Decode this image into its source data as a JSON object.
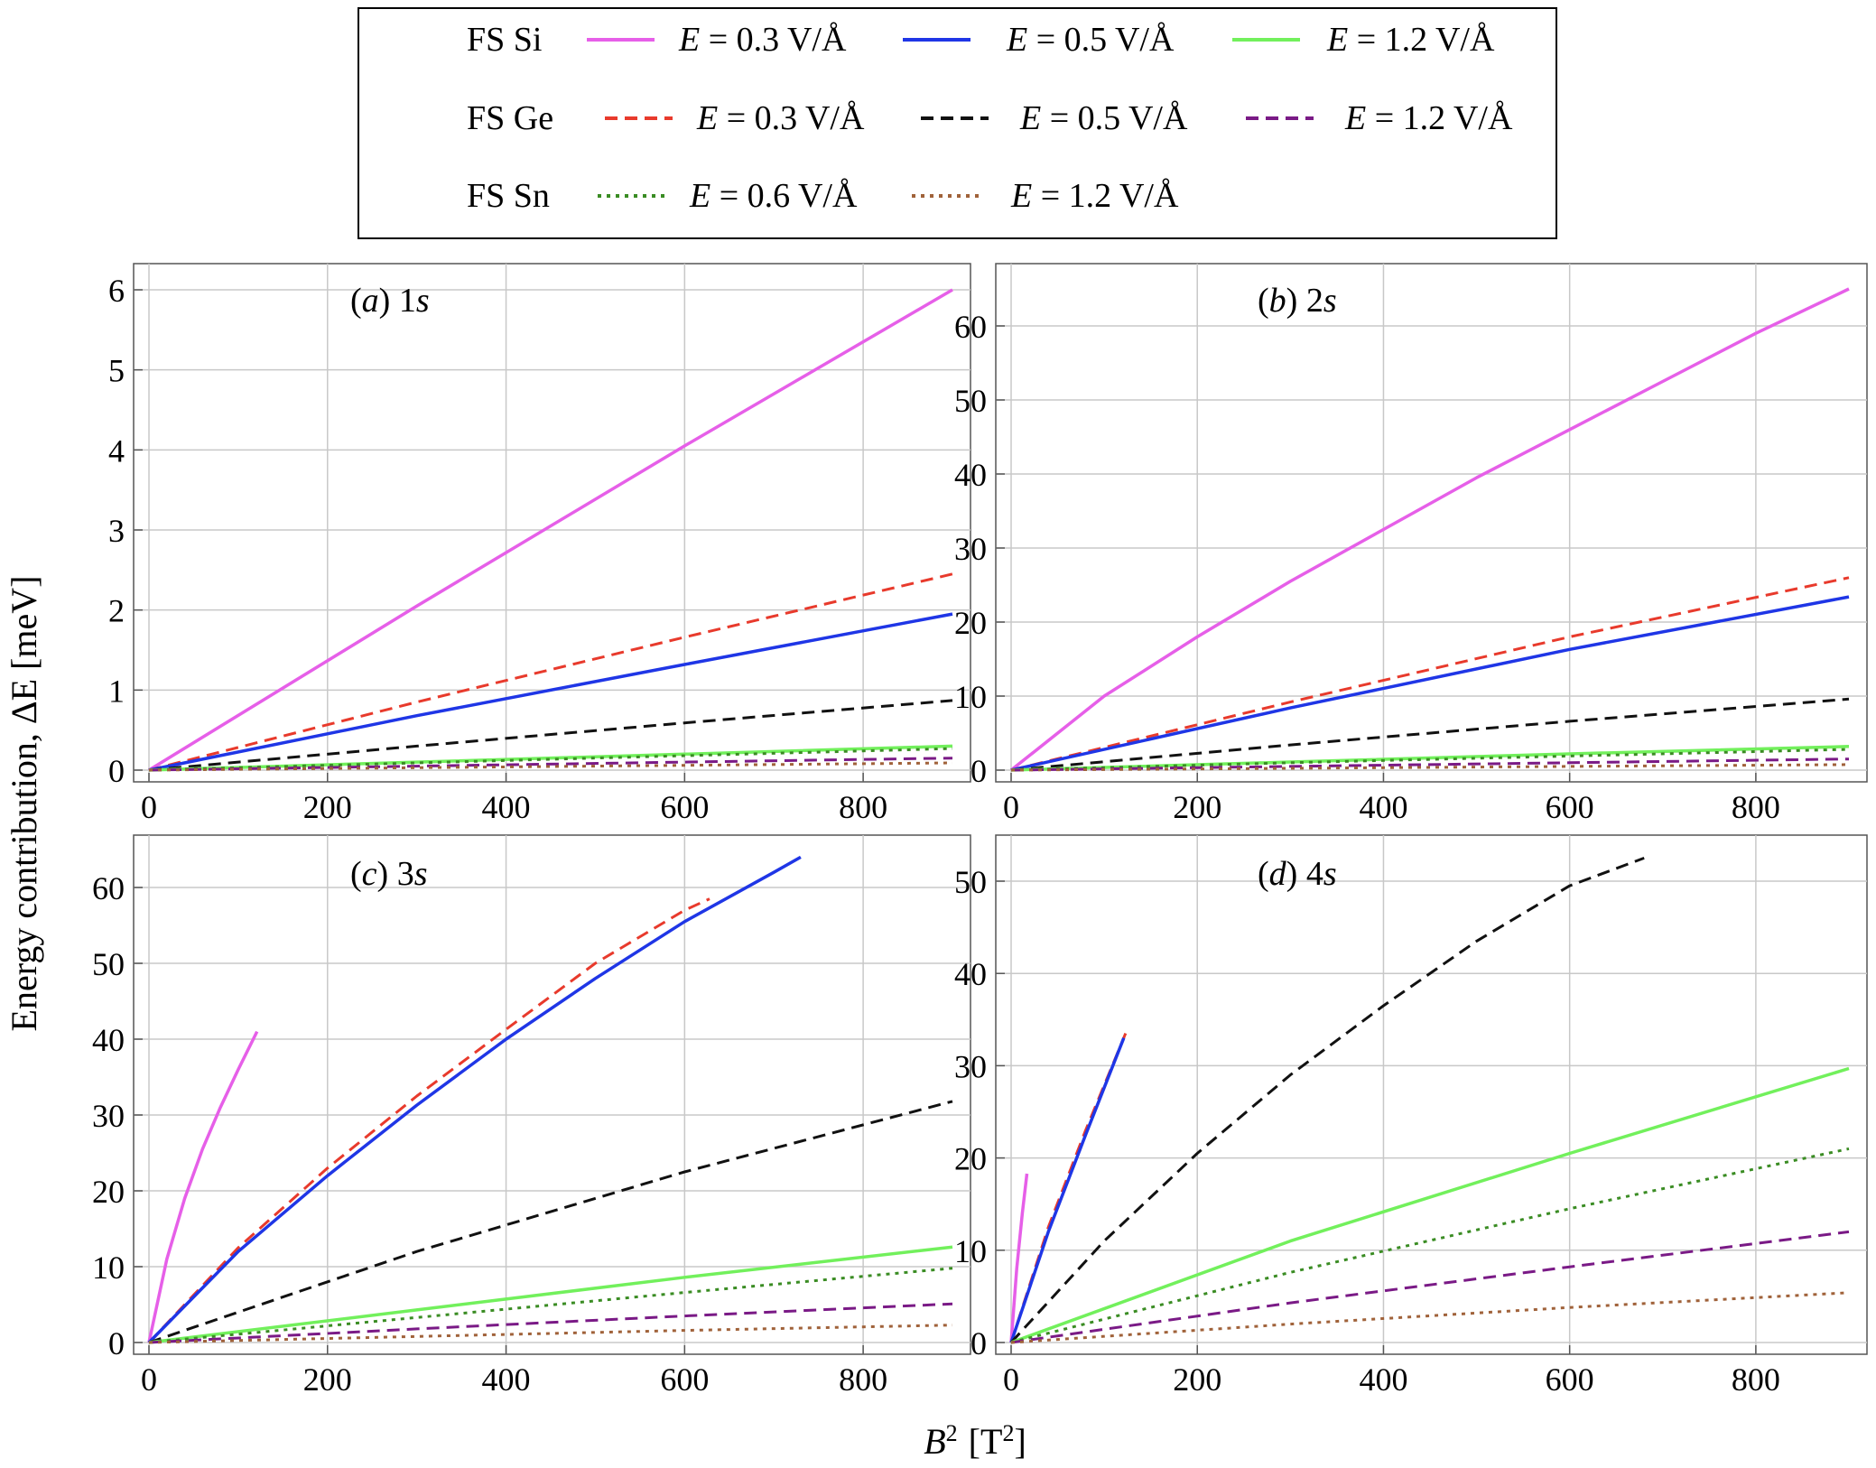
{
  "figure": {
    "ylabel": "Energy contribution, ΔE [meV]",
    "xlabel_main": "B",
    "xlabel_sup": "2",
    "xlabel_unit": "[T",
    "xlabel_unit_sup": "2",
    "xlabel_unit_close": "]"
  },
  "legend": {
    "groups": [
      {
        "label": "FS Si",
        "entries": [
          {
            "key": "si03",
            "text": "E = 0.3 V/Å",
            "color": "#e65fe8",
            "style": "solid"
          },
          {
            "key": "si05",
            "text": "E = 0.5 V/Å",
            "color": "#1f36e6",
            "style": "solid"
          },
          {
            "key": "si12",
            "text": "E = 1.2 V/Å",
            "color": "#72f05c",
            "style": "solid"
          }
        ]
      },
      {
        "label": "FS Ge",
        "entries": [
          {
            "key": "ge03",
            "text": "E = 0.3 V/Å",
            "color": "#e83a2c",
            "style": "dashed"
          },
          {
            "key": "ge05",
            "text": "E = 0.5 V/Å",
            "color": "#111111",
            "style": "dashed"
          },
          {
            "key": "ge12",
            "text": "E = 1.2 V/Å",
            "color": "#7a1a86",
            "style": "dashed"
          }
        ]
      },
      {
        "label": "FS Sn",
        "entries": [
          {
            "key": "sn06",
            "text": "E = 0.6 V/Å",
            "color": "#3a8c23",
            "style": "dotted"
          },
          {
            "key": "sn12",
            "text": "E = 1.2 V/Å",
            "color": "#a0623a",
            "style": "dotted"
          }
        ]
      }
    ]
  },
  "chart_data": [
    {
      "type": "line",
      "panel": "a",
      "title_letter": "(a)",
      "title_state": "1s",
      "xlim": [
        0,
        900
      ],
      "ylim": [
        0,
        6
      ],
      "grid": true,
      "xticks": [
        0,
        200,
        400,
        600,
        800
      ],
      "yticks": [
        0,
        1,
        2,
        3,
        4,
        5,
        6
      ],
      "series": [
        {
          "key": "si03",
          "x": [
            0,
            300,
            600,
            900
          ],
          "y": [
            0,
            2.05,
            4.05,
            6.0
          ]
        },
        {
          "key": "ge03",
          "x": [
            0,
            300,
            600,
            900
          ],
          "y": [
            0,
            0.85,
            1.66,
            2.45
          ]
        },
        {
          "key": "si05",
          "x": [
            0,
            300,
            600,
            900
          ],
          "y": [
            0,
            0.68,
            1.32,
            1.95
          ]
        },
        {
          "key": "ge05",
          "x": [
            0,
            300,
            600,
            900
          ],
          "y": [
            0,
            0.3,
            0.59,
            0.87
          ]
        },
        {
          "key": "si12",
          "x": [
            0,
            300,
            600,
            900
          ],
          "y": [
            0,
            0.1,
            0.2,
            0.3
          ]
        },
        {
          "key": "sn06",
          "x": [
            0,
            300,
            600,
            900
          ],
          "y": [
            0,
            0.09,
            0.18,
            0.27
          ]
        },
        {
          "key": "ge12",
          "x": [
            0,
            300,
            600,
            900
          ],
          "y": [
            0,
            0.05,
            0.1,
            0.15
          ]
        },
        {
          "key": "sn12",
          "x": [
            0,
            300,
            600,
            900
          ],
          "y": [
            0,
            0.03,
            0.06,
            0.09
          ]
        }
      ]
    },
    {
      "type": "line",
      "panel": "b",
      "title_letter": "(b)",
      "title_state": "2s",
      "xlim": [
        0,
        900
      ],
      "ylim": [
        0,
        65
      ],
      "grid": true,
      "xticks": [
        0,
        200,
        400,
        600,
        800
      ],
      "yticks": [
        0,
        10,
        20,
        30,
        40,
        50,
        60
      ],
      "series": [
        {
          "key": "si03",
          "x": [
            0,
            100,
            200,
            300,
            400,
            500,
            600,
            700,
            800,
            900
          ],
          "y": [
            0,
            10,
            18,
            25.5,
            32.5,
            39.5,
            46,
            52.5,
            59,
            65
          ]
        },
        {
          "key": "ge03",
          "x": [
            0,
            300,
            600,
            900
          ],
          "y": [
            0,
            9.2,
            18,
            26
          ]
        },
        {
          "key": "si05",
          "x": [
            0,
            300,
            600,
            900
          ],
          "y": [
            0,
            8.4,
            16.3,
            23.4
          ]
        },
        {
          "key": "ge05",
          "x": [
            0,
            300,
            600,
            900
          ],
          "y": [
            0,
            3.4,
            6.6,
            9.6
          ]
        },
        {
          "key": "si12",
          "x": [
            0,
            300,
            600,
            900
          ],
          "y": [
            0,
            1.1,
            2.2,
            3.2
          ]
        },
        {
          "key": "sn06",
          "x": [
            0,
            300,
            600,
            900
          ],
          "y": [
            0,
            1.0,
            1.9,
            2.8
          ]
        },
        {
          "key": "ge12",
          "x": [
            0,
            300,
            600,
            900
          ],
          "y": [
            0,
            0.5,
            1.0,
            1.5
          ]
        },
        {
          "key": "sn12",
          "x": [
            0,
            300,
            600,
            900
          ],
          "y": [
            0,
            0.25,
            0.5,
            0.75
          ]
        }
      ]
    },
    {
      "type": "line",
      "panel": "c",
      "title_letter": "(c)",
      "title_state": "3s",
      "xlim": [
        0,
        900
      ],
      "ylim": [
        0,
        65
      ],
      "grid": true,
      "xticks": [
        0,
        200,
        400,
        600,
        800
      ],
      "yticks": [
        0,
        10,
        20,
        30,
        40,
        50,
        60
      ],
      "series": [
        {
          "key": "si03",
          "x": [
            0,
            20,
            40,
            60,
            80,
            100,
            121
          ],
          "y": [
            0,
            11,
            19,
            25.5,
            31,
            36,
            41
          ]
        },
        {
          "key": "ge03",
          "x": [
            0,
            100,
            200,
            300,
            400,
            500,
            600,
            628
          ],
          "y": [
            0,
            12.5,
            23,
            32.5,
            41.3,
            50,
            57,
            58.5
          ]
        },
        {
          "key": "si05",
          "x": [
            0,
            100,
            200,
            300,
            400,
            500,
            600,
            700,
            730
          ],
          "y": [
            0,
            12,
            22,
            31.3,
            40,
            48,
            55.5,
            62,
            64
          ]
        },
        {
          "key": "ge05",
          "x": [
            0,
            300,
            600,
            900
          ],
          "y": [
            0,
            12,
            22.5,
            31.8
          ]
        },
        {
          "key": "si12",
          "x": [
            0,
            300,
            600,
            900
          ],
          "y": [
            0,
            4.3,
            8.6,
            12.6
          ]
        },
        {
          "key": "sn06",
          "x": [
            0,
            300,
            600,
            900
          ],
          "y": [
            0,
            3.3,
            6.6,
            9.8
          ]
        },
        {
          "key": "ge12",
          "x": [
            0,
            300,
            600,
            900
          ],
          "y": [
            0,
            1.8,
            3.5,
            5.1
          ]
        },
        {
          "key": "sn12",
          "x": [
            0,
            300,
            600,
            900
          ],
          "y": [
            0,
            0.8,
            1.6,
            2.3
          ]
        }
      ]
    },
    {
      "type": "line",
      "panel": "d",
      "title_letter": "(d)",
      "title_state": "4s",
      "xlim": [
        0,
        900
      ],
      "ylim": [
        0,
        55
      ],
      "grid": true,
      "xticks": [
        0,
        200,
        400,
        600,
        800
      ],
      "yticks": [
        0,
        10,
        20,
        30,
        40,
        50
      ],
      "series": [
        {
          "key": "si03",
          "x": [
            0,
            6,
            12,
            17
          ],
          "y": [
            0,
            8,
            14,
            18.3
          ]
        },
        {
          "key": "ge03",
          "x": [
            0,
            40,
            80,
            123
          ],
          "y": [
            0,
            12.5,
            23,
            33.5
          ]
        },
        {
          "key": "si05",
          "x": [
            0,
            40,
            80,
            121
          ],
          "y": [
            0,
            12,
            22.5,
            33
          ]
        },
        {
          "key": "ge05",
          "x": [
            0,
            100,
            200,
            300,
            400,
            500,
            600,
            680
          ],
          "y": [
            0,
            11,
            20.5,
            29,
            36.5,
            43.5,
            49.5,
            52.5
          ]
        },
        {
          "key": "si12",
          "x": [
            0,
            300,
            600,
            900
          ],
          "y": [
            0,
            11,
            20.5,
            29.7
          ]
        },
        {
          "key": "sn06",
          "x": [
            0,
            300,
            600,
            900
          ],
          "y": [
            0,
            7.6,
            14.5,
            21
          ]
        },
        {
          "key": "ge12",
          "x": [
            0,
            300,
            600,
            900
          ],
          "y": [
            0,
            4.3,
            8.2,
            12
          ]
        },
        {
          "key": "sn12",
          "x": [
            0,
            300,
            600,
            900
          ],
          "y": [
            0,
            2,
            3.8,
            5.4
          ]
        }
      ]
    }
  ]
}
